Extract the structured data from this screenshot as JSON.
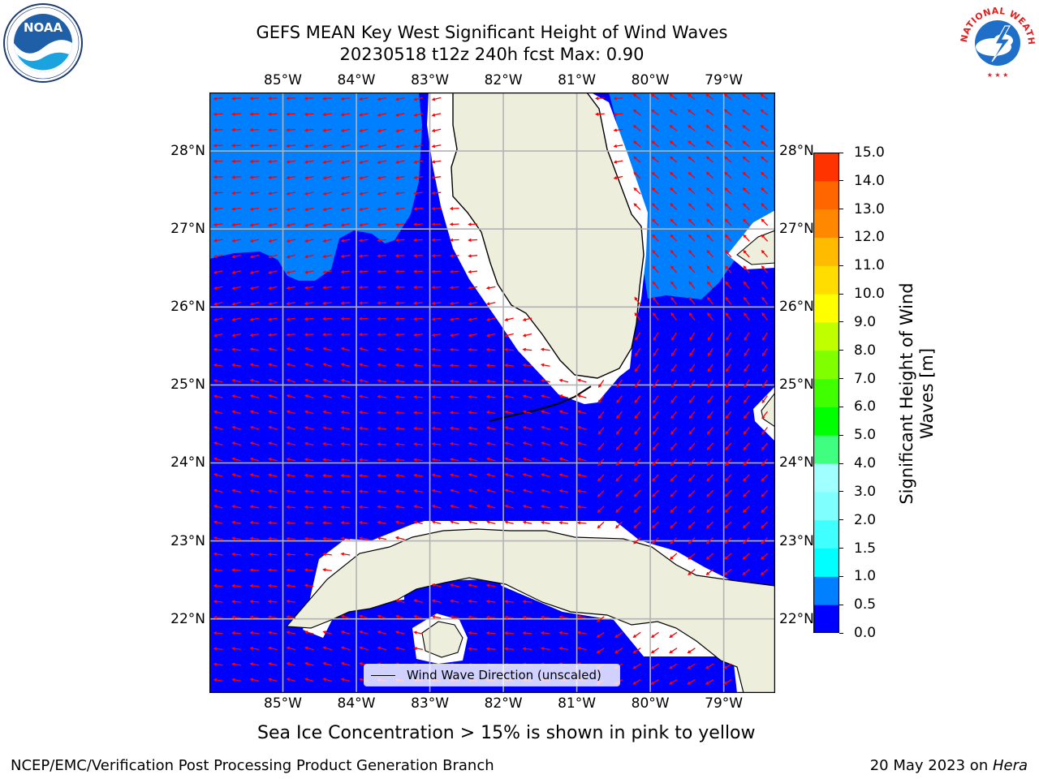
{
  "title": {
    "line1": "GEFS MEAN Key West Significant Height of Wind Waves",
    "line2": "20230518 t12z 240h fcst   Max: 0.90"
  },
  "map": {
    "lon_labels": [
      "85°W",
      "84°W",
      "83°W",
      "82°W",
      "81°W",
      "80°W",
      "79°W"
    ],
    "lon_values": [
      -85,
      -84,
      -83,
      -82,
      -81,
      -80,
      -79
    ],
    "lat_labels": [
      "28°N",
      "27°N",
      "26°N",
      "25°N",
      "24°N",
      "23°N",
      "22°N"
    ],
    "lat_values": [
      28,
      27,
      26,
      25,
      24,
      23,
      22
    ],
    "lon_range": [
      -86,
      -78.3
    ],
    "lat_range": [
      21.05,
      28.75
    ],
    "colors": {
      "land": "#eeeedd",
      "sea_low": "#0000ff",
      "sea_mid": "#0080ff",
      "coast": "#000000",
      "grid": "#b3b3b3",
      "arrow": "#ff0000"
    },
    "legend_label": "Wind Wave Direction (unscaled)"
  },
  "colorbar": {
    "label": "Significant Height of Wind Waves [m]",
    "label_line1": "Significant Height of Wind",
    "label_line2": "Waves [m]",
    "tick_labels": [
      "0.0",
      "0.5",
      "1.0",
      "1.5",
      "2.0",
      "3.0",
      "4.0",
      "5.0",
      "6.0",
      "7.0",
      "8.0",
      "9.0",
      "10.0",
      "11.0",
      "12.0",
      "13.0",
      "14.0",
      "15.0"
    ],
    "colors": [
      "#0000ff",
      "#0080ff",
      "#00ffff",
      "#40ffff",
      "#80ffff",
      "#a0ffff",
      "#40ff80",
      "#00ff00",
      "#40ff00",
      "#80ff00",
      "#c0ff00",
      "#ffff00",
      "#ffdd00",
      "#ffbb00",
      "#ff8800",
      "#ff6600",
      "#ff3300",
      "#ff0000"
    ]
  },
  "note": "Sea Ice Concentration > 15% is shown in pink to yellow",
  "footer": {
    "left": "NCEP/EMC/Verification Post Processing Product Generation Branch",
    "right_prefix": "20 May 2023 on ",
    "right_host": "Hera"
  },
  "logos": {
    "noaa": "NOAA",
    "nws_ring": "NATIONAL WEATHER SERVICE",
    "noaa_ring": "NATIONAL OCEANIC AND ATMOSPHERIC ADMINISTRATION · U.S. DEPARTMENT OF COMMERCE"
  }
}
